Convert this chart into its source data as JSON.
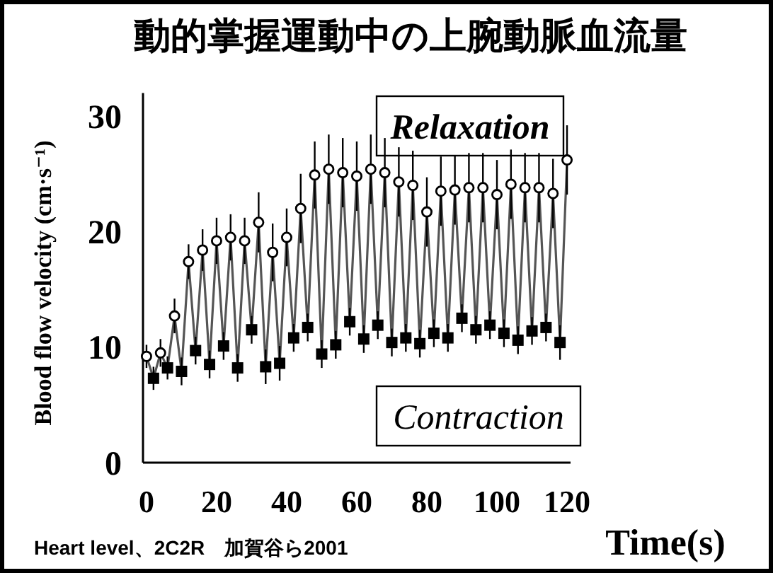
{
  "chart_data": {
    "type": "line",
    "title": "動的掌握運動中の上腕動脈血流量",
    "xlabel": "Time(s)",
    "ylabel": "Blood flow velocity (cm·s⁻¹)",
    "annotations": [
      "Relaxation",
      "Contraction",
      "Heart level、2C2R　加賀谷ら2001"
    ],
    "xlim": [
      -1,
      121
    ],
    "xticks": [
      0,
      20,
      40,
      60,
      80,
      100,
      120
    ],
    "ylim": [
      0,
      32
    ],
    "yticks": [
      0,
      10,
      20,
      30
    ],
    "grid": false,
    "series": [
      {
        "color": "#555555",
        "marker": "none",
        "x": [
          0,
          2,
          4,
          6,
          8,
          10,
          12,
          14,
          16,
          18,
          20,
          22,
          24,
          26,
          28,
          30,
          32,
          34,
          36,
          38,
          40,
          42,
          44,
          46,
          48,
          50,
          52,
          54,
          56,
          58,
          60,
          62,
          64,
          66,
          68,
          70,
          72,
          74,
          76,
          78,
          80,
          82,
          84,
          86,
          88,
          90,
          92,
          94,
          96,
          98,
          100,
          102,
          104,
          106,
          108,
          110,
          112,
          114,
          116,
          118,
          120
        ],
        "values": [
          9.2,
          7.3,
          9.5,
          8.2,
          12.7,
          7.9,
          17.4,
          9.7,
          18.4,
          8.5,
          19.2,
          10.1,
          19.5,
          8.2,
          19.2,
          11.5,
          20.8,
          8.3,
          18.2,
          8.6,
          19.5,
          10.8,
          22.0,
          11.7,
          24.9,
          9.4,
          25.4,
          10.2,
          25.1,
          12.2,
          24.8,
          10.7,
          25.4,
          11.9,
          25.1,
          10.4,
          24.3,
          10.8,
          24.0,
          10.3,
          21.7,
          11.2,
          23.5,
          10.8,
          23.6,
          12.5,
          23.8,
          11.5,
          23.8,
          11.9,
          23.2,
          11.2,
          24.1,
          10.6,
          23.8,
          11.4,
          23.8,
          11.7,
          23.3,
          10.4,
          26.2
        ]
      },
      {
        "type": "scatter",
        "color": "#000000",
        "marker": "circle",
        "x": [
          0,
          4,
          8,
          12,
          16,
          20,
          24,
          28,
          32,
          36,
          40,
          44,
          48,
          52,
          56,
          60,
          64,
          68,
          72,
          76,
          80,
          84,
          88,
          92,
          96,
          100,
          104,
          108,
          112,
          116,
          120
        ],
        "values": [
          9.2,
          9.5,
          12.7,
          17.4,
          18.4,
          19.2,
          19.5,
          19.2,
          20.8,
          18.2,
          19.5,
          22.0,
          24.9,
          25.4,
          25.1,
          24.8,
          25.4,
          25.1,
          24.3,
          24.0,
          21.7,
          23.5,
          23.6,
          23.8,
          23.8,
          23.2,
          24.1,
          23.8,
          23.8,
          23.3,
          26.2
        ],
        "errors": [
          1,
          1.2,
          1.5,
          1.5,
          1.8,
          2,
          2,
          2,
          2.6,
          2.5,
          2.5,
          3,
          2.9,
          3,
          3,
          3,
          3,
          3,
          3,
          3,
          3,
          3,
          3,
          3,
          3,
          3,
          3,
          3,
          3,
          3,
          3
        ]
      },
      {
        "type": "scatter",
        "color": "#000000",
        "marker": "square",
        "x": [
          2,
          6,
          10,
          14,
          18,
          22,
          26,
          30,
          34,
          38,
          42,
          46,
          50,
          54,
          58,
          62,
          66,
          70,
          74,
          78,
          82,
          86,
          90,
          94,
          98,
          102,
          106,
          110,
          114,
          118
        ],
        "values": [
          7.3,
          8.2,
          7.9,
          9.7,
          8.5,
          10.1,
          8.2,
          11.5,
          8.3,
          8.6,
          10.8,
          11.7,
          9.4,
          10.2,
          12.2,
          10.7,
          11.9,
          10.4,
          10.8,
          10.3,
          11.2,
          10.8,
          12.5,
          11.5,
          11.9,
          11.2,
          10.6,
          11.4,
          11.7,
          10.4
        ],
        "errors": [
          1,
          1,
          1.2,
          1.2,
          1.2,
          1.2,
          1.2,
          1.2,
          1.5,
          1.5,
          1.2,
          1.2,
          1.2,
          1.2,
          1.2,
          1.2,
          1.2,
          1.2,
          1.2,
          1.2,
          1.2,
          1.2,
          1.2,
          1.2,
          1.2,
          1.2,
          1.2,
          1.2,
          1.2,
          1.5
        ]
      }
    ]
  }
}
